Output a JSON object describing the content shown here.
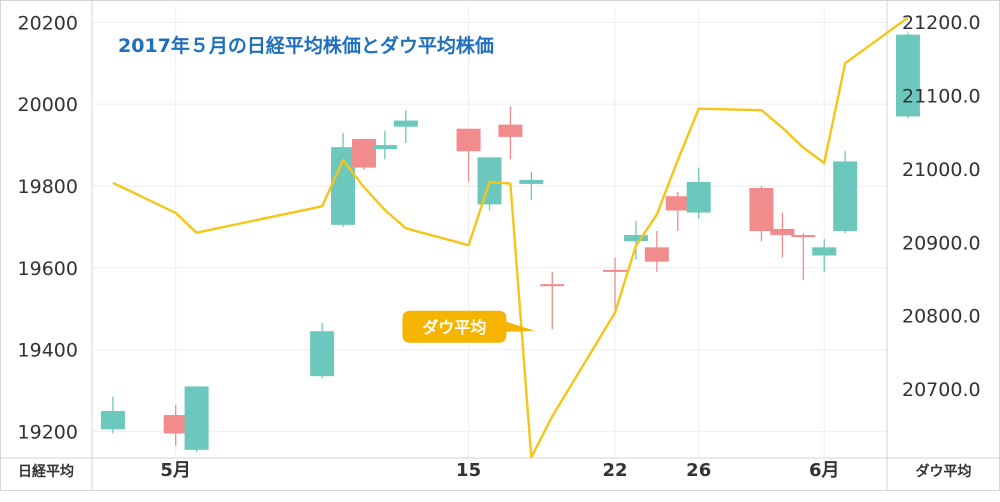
{
  "chart_data": {
    "type": "candlestick+line",
    "title": "2017年５月の日経平均株価とダウ平均株価",
    "colors": {
      "up": "#6cc8bd",
      "down": "#f28b8b",
      "line": "#f5c518",
      "title": "#1f6fbf",
      "callout": "#f5b400",
      "grid": "#eeeeee",
      "frame": "#d6d6d6",
      "label_text": "#333333"
    },
    "left_axis": {
      "label": "日経平均",
      "ticks": [
        19200,
        19400,
        19600,
        19800,
        20000,
        20200
      ],
      "ylim": [
        19135,
        20240
      ]
    },
    "right_axis": {
      "label": "ダウ平均",
      "ticks": [
        "20700.0",
        "20800.0",
        "20900.0",
        "21000.0",
        "21100.0",
        "21200.0"
      ],
      "tick_values": [
        20700,
        20800,
        20900,
        21000,
        21100,
        21200
      ],
      "ylim": [
        20606,
        21222
      ]
    },
    "x_axis": {
      "ticks": [
        {
          "label": "5月",
          "date": "2017-05-01"
        },
        {
          "label": "15",
          "date": "2017-05-15"
        },
        {
          "label": "22",
          "date": "2017-05-22"
        },
        {
          "label": "26",
          "date": "2017-05-26"
        },
        {
          "label": "6月",
          "date": "2017-06-01"
        }
      ],
      "xlim": [
        "2017-04-27",
        "2017-06-04"
      ]
    },
    "nikkei_candles": [
      {
        "date": "2017-04-28",
        "open": 19205,
        "high": 19285,
        "low": 19195,
        "close": 19250
      },
      {
        "date": "2017-05-01",
        "open": 19240,
        "high": 19265,
        "low": 19165,
        "close": 19195
      },
      {
        "date": "2017-05-02",
        "open": 19155,
        "high": 19310,
        "low": 19150,
        "close": 19310
      },
      {
        "date": "2017-05-08",
        "open": 19335,
        "high": 19465,
        "low": 19330,
        "close": 19445
      },
      {
        "date": "2017-05-09",
        "open": 19705,
        "high": 19930,
        "low": 19700,
        "close": 19895
      },
      {
        "date": "2017-05-10",
        "open": 19915,
        "high": 19915,
        "low": 19840,
        "close": 19845
      },
      {
        "date": "2017-05-11",
        "open": 19890,
        "high": 19935,
        "low": 19865,
        "close": 19900
      },
      {
        "date": "2017-05-12",
        "open": 19945,
        "high": 19985,
        "low": 19905,
        "close": 19960
      },
      {
        "date": "2017-05-15",
        "open": 19940,
        "high": 19940,
        "low": 19810,
        "close": 19885
      },
      {
        "date": "2017-05-16",
        "open": 19755,
        "high": 19870,
        "low": 19740,
        "close": 19870
      },
      {
        "date": "2017-05-17",
        "open": 19950,
        "high": 19995,
        "low": 19865,
        "close": 19920
      },
      {
        "date": "2017-05-18",
        "open": 19805,
        "high": 19835,
        "low": 19765,
        "close": 19815
      },
      {
        "date": "2017-05-19",
        "open": 19560,
        "high": 19590,
        "low": 19450,
        "close": 19555
      },
      {
        "date": "2017-05-22",
        "open": 19595,
        "high": 19625,
        "low": 19500,
        "close": 19590
      },
      {
        "date": "2017-05-23",
        "open": 19665,
        "high": 19715,
        "low": 19620,
        "close": 19680
      },
      {
        "date": "2017-05-24",
        "open": 19650,
        "high": 19690,
        "low": 19590,
        "close": 19615
      },
      {
        "date": "2017-05-25",
        "open": 19775,
        "high": 19785,
        "low": 19690,
        "close": 19740
      },
      {
        "date": "2017-05-26",
        "open": 19735,
        "high": 19845,
        "low": 19720,
        "close": 19810
      },
      {
        "date": "2017-05-29",
        "open": 19795,
        "high": 19800,
        "low": 19665,
        "close": 19690
      },
      {
        "date": "2017-05-30",
        "open": 19695,
        "high": 19735,
        "low": 19625,
        "close": 19680
      },
      {
        "date": "2017-05-31",
        "open": 19680,
        "high": 19685,
        "low": 19570,
        "close": 19675
      },
      {
        "date": "2017-06-01",
        "open": 19630,
        "high": 19670,
        "low": 19590,
        "close": 19650
      },
      {
        "date": "2017-06-02",
        "open": 19690,
        "high": 19885,
        "low": 19685,
        "close": 19860
      },
      {
        "date": "2017-06-05",
        "open": 19970,
        "high": 20175,
        "low": 19965,
        "close": 20170
      }
    ],
    "dow_line": [
      {
        "date": "2017-04-28",
        "value": 20981
      },
      {
        "date": "2017-05-01",
        "value": 20940
      },
      {
        "date": "2017-05-02",
        "value": 20913
      },
      {
        "date": "2017-05-08",
        "value": 20949
      },
      {
        "date": "2017-05-09",
        "value": 21012
      },
      {
        "date": "2017-05-10",
        "value": 20975
      },
      {
        "date": "2017-05-11",
        "value": 20944
      },
      {
        "date": "2017-05-12",
        "value": 20919
      },
      {
        "date": "2017-05-15",
        "value": 20896
      },
      {
        "date": "2017-05-16",
        "value": 20982
      },
      {
        "date": "2017-05-17",
        "value": 20980
      },
      {
        "date": "2017-05-18",
        "value": 20607
      },
      {
        "date": "2017-05-19",
        "value": 20663
      },
      {
        "date": "2017-05-22",
        "value": 20804
      },
      {
        "date": "2017-05-23",
        "value": 20895
      },
      {
        "date": "2017-05-24",
        "value": 20938
      },
      {
        "date": "2017-05-25",
        "value": 21012
      },
      {
        "date": "2017-05-26",
        "value": 21082
      },
      {
        "date": "2017-05-29",
        "value": 21080
      },
      {
        "date": "2017-05-30",
        "value": 21056
      },
      {
        "date": "2017-05-31",
        "value": 21029
      },
      {
        "date": "2017-06-01",
        "value": 21008
      },
      {
        "date": "2017-06-02",
        "value": 21144
      },
      {
        "date": "2017-06-05",
        "value": 21206
      }
    ],
    "annotation": {
      "text": "ダウ平均",
      "series": "dow_line",
      "near_date": "2017-05-17"
    },
    "grid": true,
    "legend": "none"
  }
}
